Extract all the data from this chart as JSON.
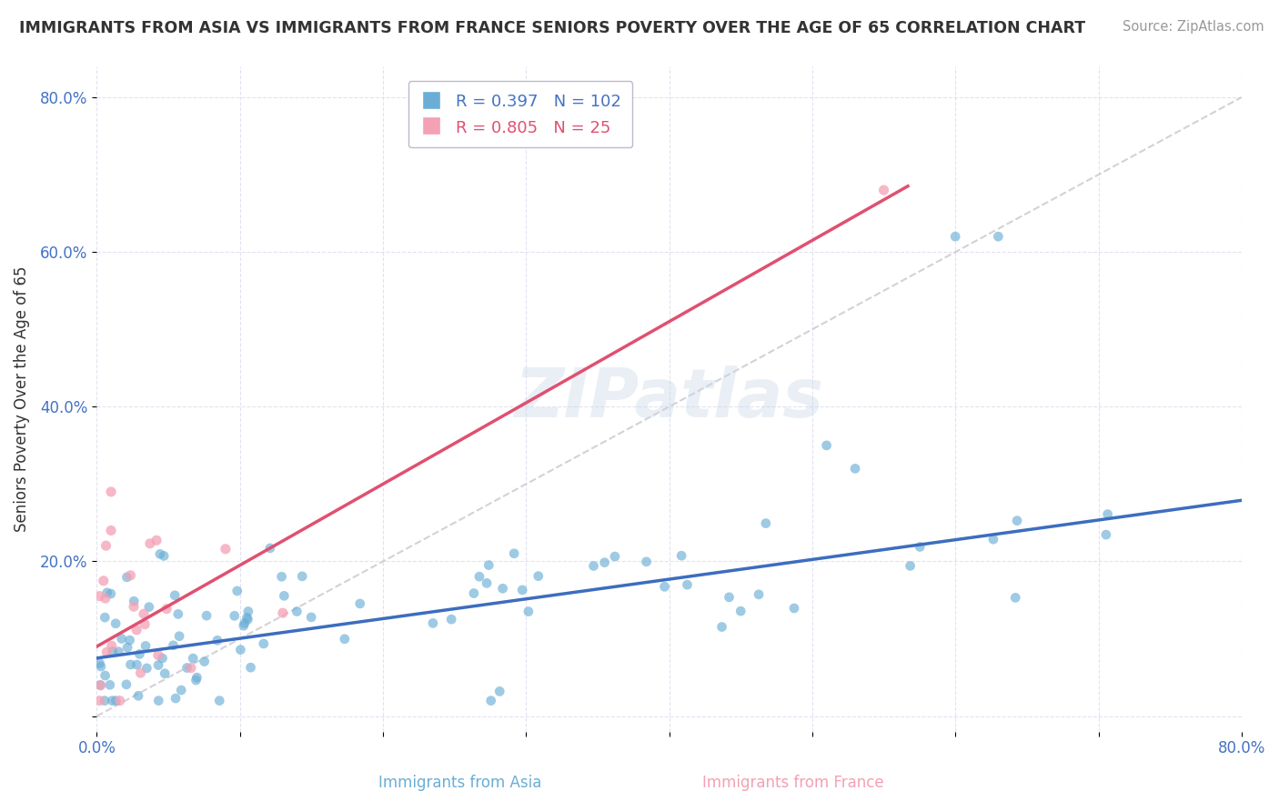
{
  "title": "IMMIGRANTS FROM ASIA VS IMMIGRANTS FROM FRANCE SENIORS POVERTY OVER THE AGE OF 65 CORRELATION CHART",
  "source": "Source: ZipAtlas.com",
  "ylabel": "Seniors Poverty Over the Age of 65",
  "legend_asia": "Immigrants from Asia",
  "legend_france": "Immigrants from France",
  "R_asia": 0.397,
  "N_asia": 102,
  "R_france": 0.805,
  "N_france": 25,
  "xmin": 0.0,
  "xmax": 0.8,
  "ymin": -0.02,
  "ymax": 0.84,
  "color_asia": "#6aaed6",
  "color_france": "#f4a0b5",
  "trendline_asia": "#3c6dbf",
  "trendline_france": "#e05070",
  "trendline_diag": "#c8c8cc",
  "background_color": "#ffffff",
  "watermark": "ZIPatlas",
  "asia_intercept": 0.075,
  "asia_slope": 0.255,
  "france_intercept": 0.09,
  "france_slope": 1.05
}
